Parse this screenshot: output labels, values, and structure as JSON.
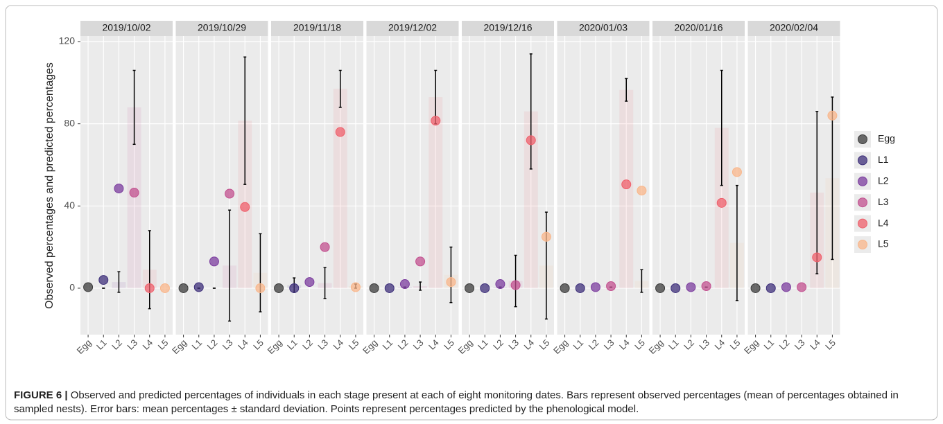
{
  "chart_data": {
    "type": "bar",
    "y_label": "Observed percentages and predicted percentages",
    "ylim": [
      -22.6,
      122.7
    ],
    "yticks": [
      0,
      40,
      80,
      120
    ],
    "grid": true,
    "categories": [
      "Egg",
      "L1",
      "L2",
      "L3",
      "L4",
      "L5"
    ],
    "series": [
      {
        "name": "Egg",
        "color": "#3b3b3b"
      },
      {
        "name": "L1",
        "color": "#3d2f7a"
      },
      {
        "name": "L2",
        "color": "#7b3c9e"
      },
      {
        "name": "L3",
        "color": "#c2508f"
      },
      {
        "name": "L4",
        "color": "#ef5f6b"
      },
      {
        "name": "L5",
        "color": "#f9b68a"
      }
    ],
    "facets": [
      {
        "title": "2019/10/02",
        "bars": [
          0,
          0,
          3,
          88,
          9,
          0
        ],
        "errors": [
          null,
          0,
          5,
          18,
          19,
          null
        ],
        "points": [
          0.5,
          4,
          48.5,
          46.5,
          0,
          0
        ]
      },
      {
        "title": "2019/10/29",
        "bars": [
          0,
          0,
          0,
          11,
          81.5,
          7.5
        ],
        "errors": [
          null,
          0,
          0,
          27,
          31,
          19
        ],
        "points": [
          0,
          0.5,
          13,
          46,
          39.5,
          0
        ]
      },
      {
        "title": "2019/11/18",
        "bars": [
          0,
          1.5,
          0,
          2.5,
          97,
          1
        ],
        "errors": [
          null,
          3.5,
          null,
          7.5,
          9,
          1
        ],
        "points": [
          0,
          0,
          3,
          20,
          76,
          0.5
        ]
      },
      {
        "title": "2019/12/02",
        "bars": [
          0,
          0,
          0.5,
          1,
          93,
          6.5
        ],
        "errors": [
          null,
          null,
          0,
          2,
          13,
          13.5
        ],
        "points": [
          0,
          0,
          2,
          13,
          81.5,
          3
        ]
      },
      {
        "title": "2019/12/16",
        "bars": [
          0,
          0,
          0.5,
          3.5,
          86,
          11
        ],
        "errors": [
          null,
          null,
          0,
          12.5,
          28,
          26
        ],
        "points": [
          0,
          0,
          2,
          1.5,
          72,
          25
        ]
      },
      {
        "title": "2020/01/03",
        "bars": [
          0,
          0,
          0,
          0.5,
          96.5,
          3.5
        ],
        "errors": [
          null,
          null,
          null,
          0,
          5.5,
          5.5
        ],
        "points": [
          0,
          0,
          0.5,
          1,
          50.5,
          47.5
        ]
      },
      {
        "title": "2020/01/16",
        "bars": [
          0,
          0,
          0,
          0.5,
          78,
          22
        ],
        "errors": [
          null,
          null,
          null,
          0,
          28,
          28
        ],
        "points": [
          0,
          0,
          0.5,
          1,
          41.5,
          56.5
        ]
      },
      {
        "title": "2020/02/04",
        "bars": [
          0,
          0,
          0,
          0,
          46.5,
          53.5
        ],
        "errors": [
          null,
          null,
          null,
          null,
          39.5,
          39.5
        ],
        "points": [
          0,
          0,
          0.5,
          0.5,
          15,
          84
        ]
      }
    ]
  },
  "caption": {
    "label": "FIGURE 6 |",
    "text": "Observed and predicted percentages of individuals in each stage present at each of eight monitoring dates. Bars represent observed percentages (mean of percentages obtained in sampled nests). Error bars: mean percentages ± standard deviation. Points represent percentages predicted by the phenological model."
  }
}
